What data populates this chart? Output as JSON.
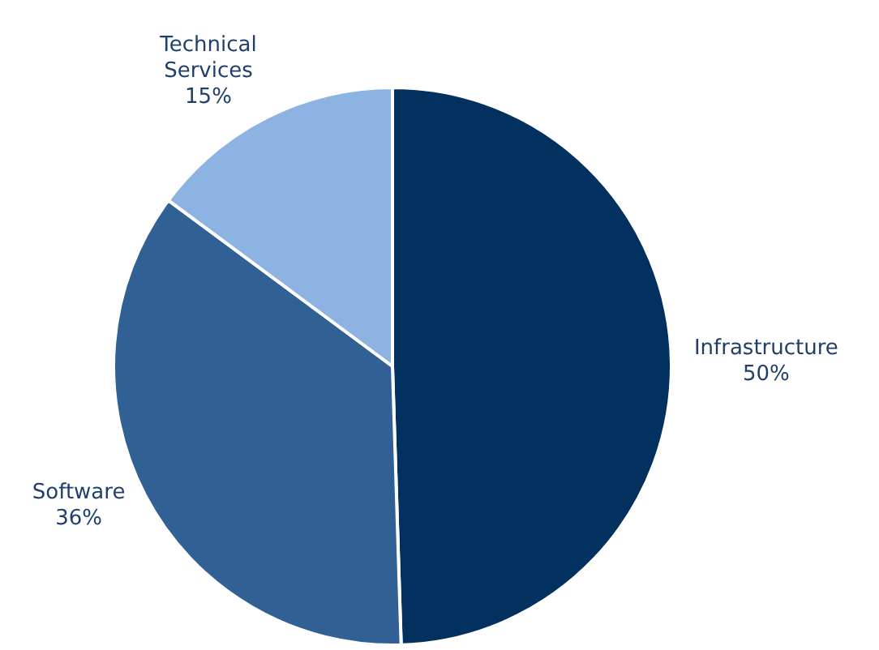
{
  "chart_data": {
    "type": "pie",
    "categories": [
      "Infrastructure",
      "Software",
      "Technical Services"
    ],
    "values": [
      50,
      36,
      15
    ],
    "value_labels": [
      "50%",
      "36%",
      "15%"
    ],
    "colors": [
      "#02305f",
      "#306094",
      "#8db3e2"
    ],
    "legend": false
  }
}
